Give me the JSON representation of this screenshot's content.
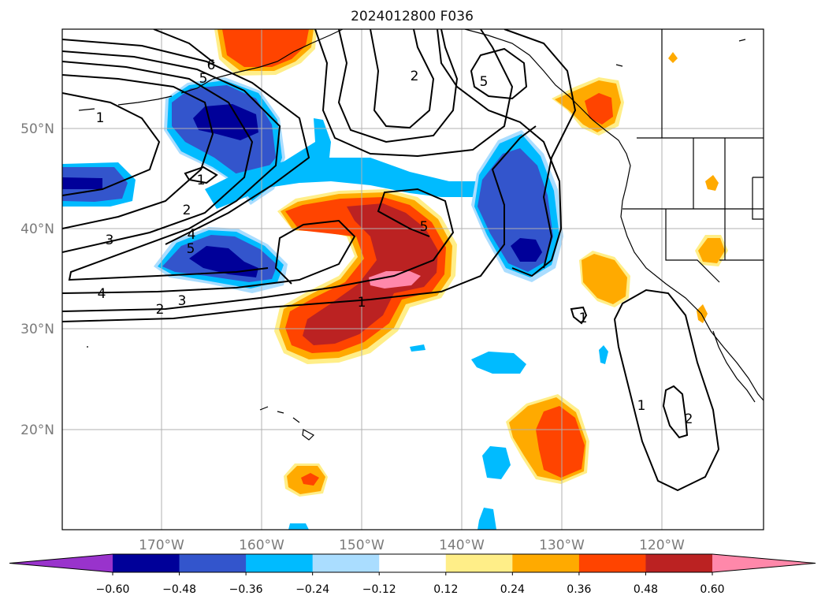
{
  "title": "2024012800 F036",
  "map": {
    "lat_labels": [
      "50°N",
      "40°N",
      "30°N",
      "20°N"
    ],
    "lon_labels": [
      "170°W",
      "160°W",
      "150°W",
      "140°W",
      "130°W",
      "120°W"
    ],
    "gridlines": true
  },
  "colorbar": {
    "ticks": [
      "−0.60",
      "−0.48",
      "−0.36",
      "−0.24",
      "−0.12",
      "0.12",
      "0.24",
      "0.36",
      "0.48",
      "0.60"
    ],
    "colors": [
      "#9933cc",
      "#000099",
      "#3355cc",
      "#00bbff",
      "#aaddff",
      "#ffffff",
      "#ffee88",
      "#ffaa00",
      "#ff4400",
      "#bb2222",
      "#ff88aa"
    ],
    "extend": "both"
  },
  "contour_labels": [
    "6",
    "5",
    "1",
    "1",
    "2",
    "3",
    "4",
    "5",
    "4",
    "3",
    "2",
    "1",
    "5",
    "2",
    "5",
    "1",
    "1",
    "2"
  ]
}
